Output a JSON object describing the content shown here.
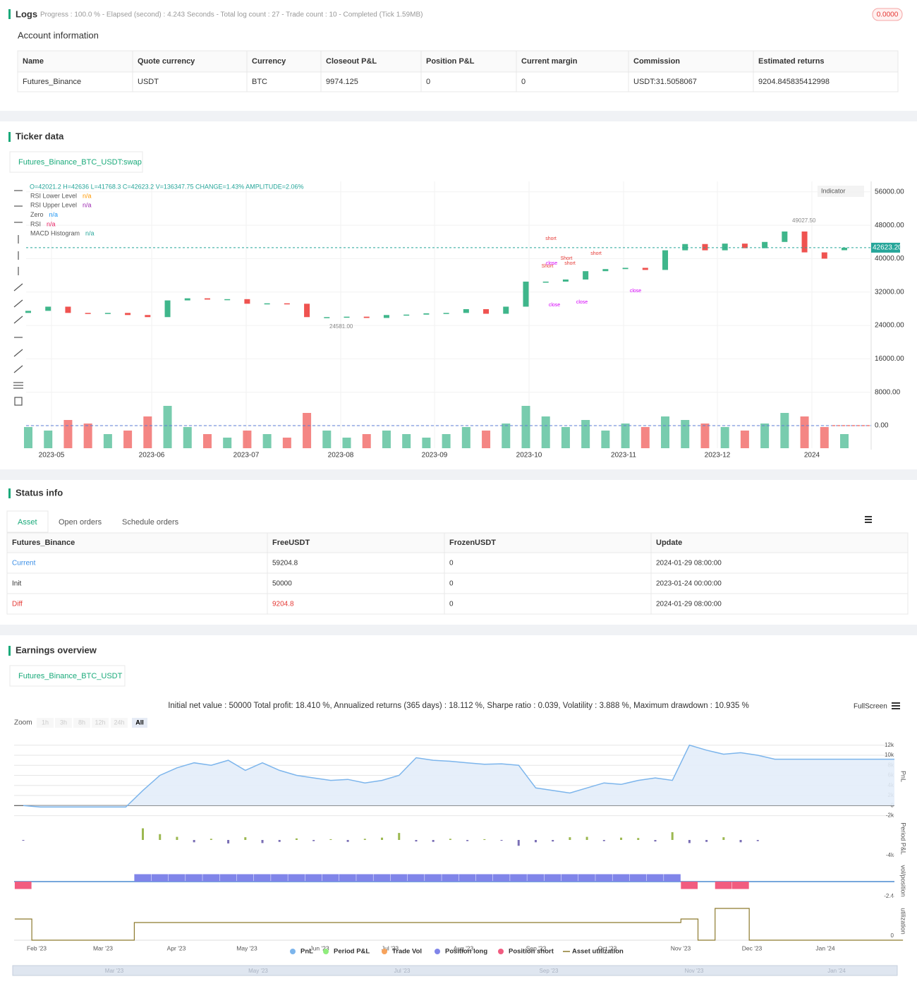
{
  "logs": {
    "title": "Logs",
    "progress": "Progress : 100.0 % - Elapsed (second) : 4.243  Seconds - Total log count : 27 - Trade count : 10 - Completed (Tick 1.59MB)",
    "badge": "0.0000"
  },
  "account": {
    "title": "Account information",
    "columns": [
      "Name",
      "Quote currency",
      "Currency",
      "Closeout P&L",
      "Position P&L",
      "Current margin",
      "Commission",
      "Estimated returns"
    ],
    "rows": [
      [
        "Futures_Binance",
        "USDT",
        "BTC",
        "9974.125",
        "0",
        "0",
        "USDT:31.5058067",
        "9204.845835412998"
      ]
    ]
  },
  "ticker": {
    "title": "Ticker data",
    "tab": "Futures_Binance_BTC_USDT:swap"
  },
  "status": {
    "title": "Status info",
    "tabs": [
      "Asset",
      "Open orders",
      "Schedule orders"
    ],
    "columns": [
      "Futures_Binance",
      "FreeUSDT",
      "FrozenUSDT",
      "Update"
    ],
    "rows": [
      [
        "Current",
        "59204.8",
        "0",
        "2024-01-29 08:00:00"
      ],
      [
        "Init",
        "50000",
        "0",
        "2023-01-24 00:00:00"
      ],
      [
        "Diff",
        "9204.8",
        "0",
        "2024-01-29 08:00:00"
      ]
    ]
  },
  "earnings": {
    "title": "Earnings overview",
    "tab": "Futures_Binance_BTC_USDT"
  },
  "chart_data": [
    {
      "type": "candlestick",
      "ohlc_line": "O=42021.2 H=42636 L=41768.3 C=42623.2 V=136347.75 CHANGE=1.43% AMPLITUDE=2.06%",
      "legend": [
        {
          "name": "RSI Lower Level",
          "value": "n/a",
          "color": "#ff9800"
        },
        {
          "name": "RSI Upper Level",
          "value": "n/a",
          "color": "#9c27b0"
        },
        {
          "name": "Zero",
          "value": "n/a",
          "color": "#2196f3"
        },
        {
          "name": "RSI",
          "value": "n/a",
          "color": "#e91e63"
        },
        {
          "name": "MACD Histogram",
          "value": "n/a",
          "color": "#26a69a"
        }
      ],
      "indicator_button": "Indicator",
      "up_color": "#3fb68b",
      "down_color": "#ef5350",
      "open": [
        27000,
        27500,
        28500,
        27000,
        26800,
        27000,
        26500,
        26000,
        30000,
        30500,
        30200,
        30300,
        29200,
        29300,
        29200,
        26000,
        26000,
        26100,
        25800,
        26500,
        26600,
        26900,
        27000,
        27900,
        26800,
        28500,
        34500,
        34500,
        35000,
        37000,
        37500,
        37800,
        37300,
        42000,
        43500,
        42000,
        43600,
        42500,
        44000,
        46500,
        41500,
        42021.2
      ],
      "close": [
        27500,
        28500,
        27000,
        26800,
        27000,
        26500,
        26000,
        30000,
        30500,
        30200,
        30300,
        29200,
        29300,
        29200,
        26000,
        26000,
        26100,
        25800,
        26500,
        26600,
        26900,
        27000,
        27900,
        26800,
        28500,
        34500,
        34500,
        35000,
        37000,
        37500,
        37800,
        37300,
        42000,
        43500,
        42000,
        43600,
        42500,
        44000,
        46500,
        41500,
        40000,
        42623.2
      ],
      "volume": [
        30,
        25,
        40,
        35,
        20,
        25,
        45,
        60,
        30,
        20,
        15,
        25,
        20,
        15,
        50,
        25,
        15,
        20,
        25,
        20,
        15,
        20,
        30,
        25,
        35,
        60,
        45,
        30,
        40,
        25,
        35,
        30,
        45,
        40,
        35,
        30,
        25,
        35,
        50,
        45,
        30,
        20
      ],
      "ylim": [
        -5400,
        58500
      ],
      "yticks": [
        {
          "value": 56000,
          "label": "56000.00"
        },
        {
          "value": 48000,
          "label": "48000.00"
        },
        {
          "value": 40000,
          "label": "40000.00"
        },
        {
          "value": 32000,
          "label": "32000.00"
        },
        {
          "value": 24000,
          "label": "24000.00"
        },
        {
          "value": 16000,
          "label": "16000.00"
        },
        {
          "value": 8000,
          "label": "8000.00"
        },
        {
          "value": 0,
          "label": "0.00"
        }
      ],
      "x_labels": [
        "2023-05",
        "2023-06",
        "2023-07",
        "2023-08",
        "2023-09",
        "2023-10",
        "2023-11",
        "2023-12",
        "2024"
      ],
      "last_price": {
        "value": 42623.2,
        "label": "42623.20"
      },
      "max_price": {
        "value": 49027.5,
        "label": "49027.50"
      },
      "min_price": {
        "value": 24581,
        "label": "24581.00"
      },
      "signals": [
        {
          "text": "short",
          "color": "#e53935"
        },
        {
          "text": "Short",
          "color": "#e53935"
        },
        {
          "text": "close",
          "color": "#d500f9"
        },
        {
          "text": "close",
          "color": "#d500f9"
        },
        {
          "text": "Short",
          "color": "#e53935"
        },
        {
          "text": "short",
          "color": "#e53935"
        },
        {
          "text": "short",
          "color": "#e53935"
        },
        {
          "text": "close",
          "color": "#d500f9"
        },
        {
          "text": "close",
          "color": "#d500f9"
        }
      ]
    },
    {
      "type": "area",
      "summary": "Initial net value : 50000 Total profit: 18.410 %, Annualized returns (365 days) : 18.112 %, Sharpe ratio : 0.039, Volatility : 3.888 %, Maximum drawdown : 10.935 %",
      "fullscreen": "FullScreen",
      "zoom_label": "Zoom",
      "zoom_buttons": [
        "1h",
        "3h",
        "8h",
        "12h",
        "24h",
        "All"
      ],
      "axis_titles": [
        "PnL",
        "Period P&L",
        "vol/position",
        "utilization"
      ],
      "x_labels": [
        "Feb '23",
        "Mar '23",
        "Apr '23",
        "May '23",
        "Jun '23",
        "Jul '23",
        "Aug '23",
        "Sep '23",
        "Oct '23",
        "Nov '23",
        "Dec '23",
        "Jan '24"
      ],
      "navigator_labels": [
        "Mar '23",
        "May '23",
        "Jul '23",
        "Sep '23",
        "Nov '23",
        "Jan '24"
      ],
      "series": [
        {
          "name": "PnL",
          "color": "#7cb5ec",
          "values": [
            0,
            -300,
            -300,
            -300,
            -300,
            -300,
            -300,
            3000,
            6000,
            7500,
            8500,
            8000,
            9000,
            7000,
            8500,
            7000,
            6000,
            5500,
            5000,
            5200,
            4500,
            5000,
            6000,
            9500,
            9000,
            8800,
            8500,
            8200,
            8300,
            8000,
            3500,
            3000,
            2500,
            3500,
            4500,
            4200,
            5000,
            5500,
            5000,
            12000,
            11000,
            10200,
            10500,
            10000,
            9204.8,
            9204.8,
            9204.8,
            9204.8,
            9204.8,
            9204.8,
            9204.8,
            9204.8
          ]
        },
        {
          "name": "Period P&L",
          "color": "#90ed7d",
          "values": [
            -200,
            0,
            0,
            0,
            0,
            0,
            0,
            3000,
            1500,
            800,
            -600,
            300,
            -900,
            700,
            -800,
            -500,
            400,
            -300,
            200,
            -500,
            300,
            600,
            1800,
            -400,
            -500,
            300,
            -300,
            200,
            -200,
            -1500,
            -600,
            -400,
            700,
            800,
            -300,
            600,
            500,
            -400,
            2000,
            -800,
            -500,
            700,
            -600,
            -300,
            0,
            0,
            0,
            0,
            0,
            0,
            0,
            0
          ]
        },
        {
          "name": "Trade Vol",
          "color": "#f7a35c"
        },
        {
          "name": "Position long",
          "color": "#8085e9",
          "values": [
            -1.2,
            0,
            0,
            0,
            0,
            0,
            0,
            1.2,
            1.2,
            1.2,
            1.2,
            1.2,
            1.2,
            1.2,
            1.2,
            1.2,
            1.2,
            1.2,
            1.2,
            1.2,
            1.2,
            1.2,
            1.2,
            1.2,
            1.2,
            1.2,
            1.2,
            1.2,
            1.2,
            1.2,
            1.2,
            1.2,
            1.2,
            1.2,
            1.2,
            1.2,
            1.2,
            1.2,
            1.2,
            -1.2,
            0,
            -1.2,
            -1.2,
            0,
            0,
            0,
            0,
            0,
            0,
            0,
            0,
            0
          ]
        },
        {
          "name": "Position short",
          "color": "#f15c80"
        },
        {
          "name": "Asset utilization",
          "color": "#8d7a2e",
          "values": [
            0.6,
            0,
            0,
            0,
            0,
            0,
            0,
            0.5,
            0.5,
            0.5,
            0.5,
            0.5,
            0.5,
            0.5,
            0.5,
            0.5,
            0.5,
            0.5,
            0.5,
            0.5,
            0.5,
            0.5,
            0.5,
            0.5,
            0.5,
            0.5,
            0.5,
            0.5,
            0.5,
            0.5,
            0.5,
            0.5,
            0.5,
            0.5,
            0.5,
            0.5,
            0.5,
            0.5,
            0.5,
            0.6,
            0,
            0.9,
            0.9,
            0,
            0,
            0,
            0,
            0,
            0,
            0,
            0,
            0
          ]
        }
      ],
      "ylim": [
        -2200,
        13500
      ],
      "yticks": [
        {
          "value": 12000,
          "label": "12k"
        },
        {
          "value": 10000,
          "label": "10k"
        },
        {
          "value": 8000,
          "label": "8k"
        },
        {
          "value": 6000,
          "label": "6k"
        },
        {
          "value": 4000,
          "label": "4k"
        },
        {
          "value": 2000,
          "label": "2k"
        },
        0,
        {
          "value": -2000,
          "label": "-2k"
        }
      ],
      "period_ticks": [
        {
          "value": -4000,
          "label": "-4k"
        }
      ],
      "position_ticks": [
        -2.4
      ],
      "utilization_ticks": [
        0
      ]
    }
  ]
}
